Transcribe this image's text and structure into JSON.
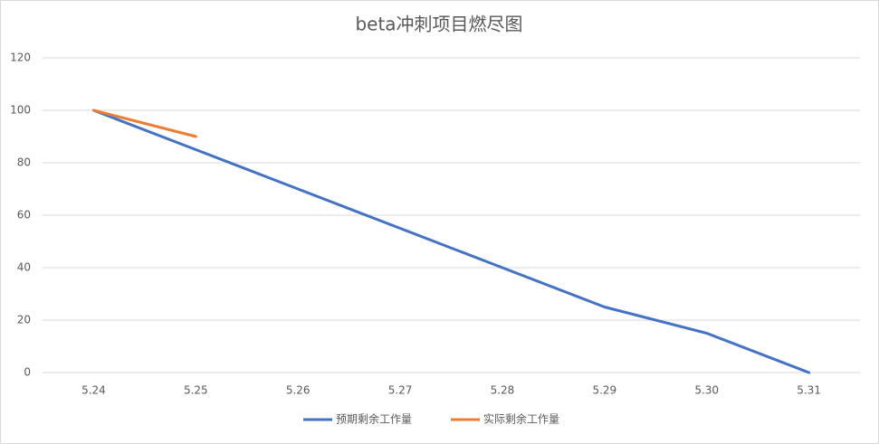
{
  "chart_data": {
    "type": "line",
    "title": "beta冲刺项目燃尽图",
    "categories": [
      "5.24",
      "5.25",
      "5.26",
      "5.27",
      "5.28",
      "5.29",
      "5.30",
      "5.31"
    ],
    "series": [
      {
        "name": "预期剩余工作量",
        "color": "#4472c4",
        "values": [
          100,
          85,
          70,
          55,
          40,
          25,
          15,
          0
        ]
      },
      {
        "name": "实际剩余工作量",
        "color": "#ed7d31",
        "values": [
          100,
          90,
          null,
          null,
          null,
          null,
          null,
          null
        ]
      }
    ],
    "ylim": [
      0,
      120
    ],
    "yticks": [
      0,
      20,
      40,
      60,
      80,
      100,
      120
    ],
    "grid": true,
    "legend": "bottom"
  }
}
